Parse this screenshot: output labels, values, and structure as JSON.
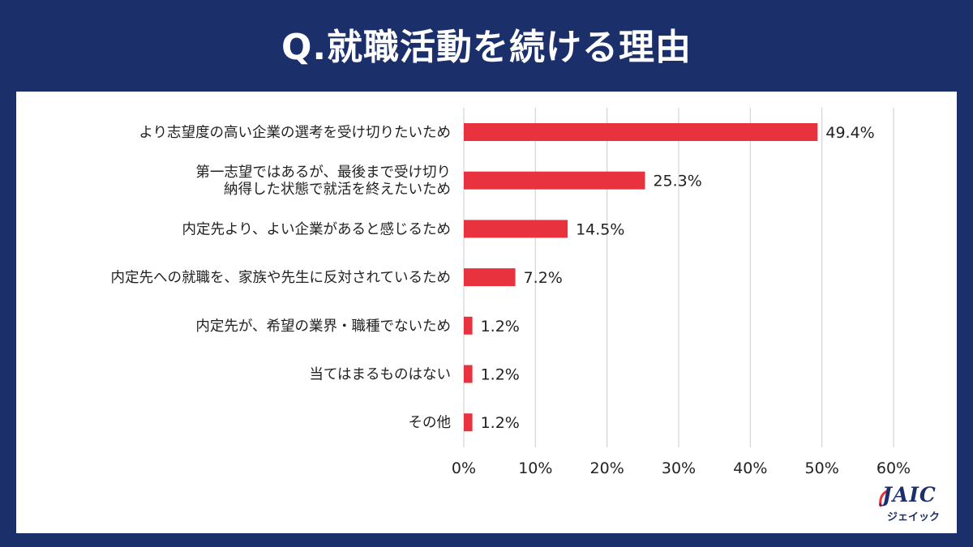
{
  "header": {
    "title": "Q.就職活動を続ける理由"
  },
  "brand": {
    "logo_text": "JAIC",
    "logo_subtext": "ジェイック",
    "accent": "#e8333f",
    "navy": "#1b2f6b"
  },
  "chart_data": {
    "type": "bar",
    "orientation": "horizontal",
    "categories": [
      [
        "より志望度の高い企業の選考を受け切りたいため"
      ],
      [
        "第一志望ではあるが、最後まで受け切り",
        "納得した状態で就活を終えたいため"
      ],
      [
        "内定先より、よい企業があると感じるため"
      ],
      [
        "内定先への就職を、家族や先生に反対されているため"
      ],
      [
        "内定先が、希望の業界・職種でないため"
      ],
      [
        "当てはまるものはない"
      ],
      [
        "その他"
      ]
    ],
    "values": [
      49.4,
      25.3,
      14.5,
      7.2,
      1.2,
      1.2,
      1.2
    ],
    "value_labels": [
      "49.4%",
      "25.3%",
      "14.5%",
      "7.2%",
      "1.2%",
      "1.2%",
      "1.2%"
    ],
    "xlim": [
      0,
      60
    ],
    "xticks": [
      0,
      10,
      20,
      30,
      40,
      50,
      60
    ],
    "xtick_labels": [
      "0%",
      "10%",
      "20%",
      "30%",
      "40%",
      "50%",
      "60%"
    ],
    "grid": true,
    "bar_color": "#e8333f",
    "title": "",
    "xlabel": "",
    "ylabel": ""
  }
}
